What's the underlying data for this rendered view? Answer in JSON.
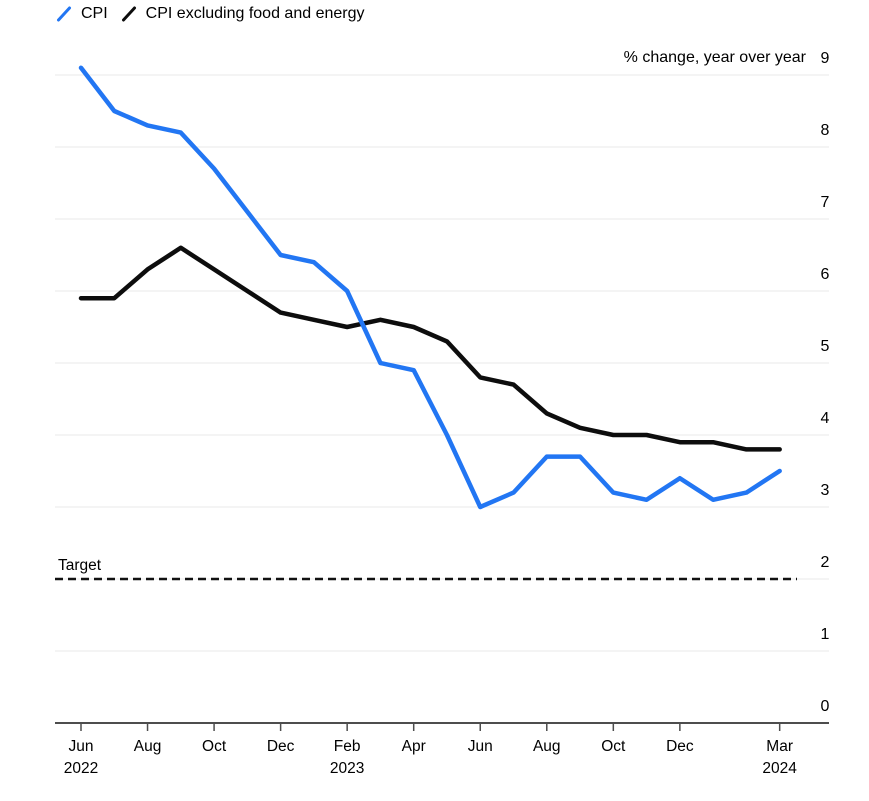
{
  "legend": {
    "items": [
      {
        "label": "CPI",
        "color": "#2276f3"
      },
      {
        "label": "CPI excluding food and energy",
        "color": "#0d0d0d"
      }
    ]
  },
  "colors": {
    "cpi_blue": "#2276f3",
    "core_black": "#0d0d0d",
    "grid": "#e9e9e9",
    "axis": "#4d4d4d",
    "target_dash": "#111111"
  },
  "chart_data": {
    "type": "line",
    "title": "",
    "unit_label": "% change, year over year",
    "x": [
      "Jun 2022",
      "Jul 2022",
      "Aug 2022",
      "Sep 2022",
      "Oct 2022",
      "Nov 2022",
      "Dec 2022",
      "Jan 2023",
      "Feb 2023",
      "Mar 2023",
      "Apr 2023",
      "May 2023",
      "Jun 2023",
      "Jul 2023",
      "Aug 2023",
      "Sep 2023",
      "Oct 2023",
      "Nov 2023",
      "Dec 2023",
      "Jan 2024",
      "Feb 2024",
      "Mar 2024"
    ],
    "series": [
      {
        "name": "CPI",
        "color": "#2276f3",
        "values": [
          9.1,
          8.5,
          8.3,
          8.2,
          7.7,
          7.1,
          6.5,
          6.4,
          6.0,
          5.0,
          4.9,
          4.0,
          3.0,
          3.2,
          3.7,
          3.7,
          3.2,
          3.1,
          3.4,
          3.1,
          3.2,
          3.5
        ]
      },
      {
        "name": "CPI excluding food and energy",
        "color": "#0d0d0d",
        "values": [
          5.9,
          5.9,
          6.3,
          6.6,
          6.3,
          6.0,
          5.7,
          5.6,
          5.5,
          5.6,
          5.5,
          5.3,
          4.8,
          4.7,
          4.3,
          4.1,
          4.0,
          4.0,
          3.9,
          3.9,
          3.8,
          3.8
        ]
      }
    ],
    "ylim": [
      0,
      9
    ],
    "yticks": [
      0,
      1,
      2,
      3,
      4,
      5,
      6,
      7,
      8,
      9
    ],
    "xticks": [
      {
        "index": 0,
        "month": "Jun",
        "year": "2022"
      },
      {
        "index": 2,
        "month": "Aug",
        "year": ""
      },
      {
        "index": 4,
        "month": "Oct",
        "year": ""
      },
      {
        "index": 6,
        "month": "Dec",
        "year": ""
      },
      {
        "index": 8,
        "month": "Feb",
        "year": "2023"
      },
      {
        "index": 10,
        "month": "Apr",
        "year": ""
      },
      {
        "index": 12,
        "month": "Jun",
        "year": ""
      },
      {
        "index": 14,
        "month": "Aug",
        "year": ""
      },
      {
        "index": 16,
        "month": "Oct",
        "year": ""
      },
      {
        "index": 18,
        "month": "Dec",
        "year": ""
      },
      {
        "index": 21,
        "month": "Mar",
        "year": "2024"
      }
    ],
    "target_line": {
      "label": "Target",
      "value": 2,
      "style": "dashed"
    },
    "grid": "horizontal",
    "legend_position": "top-left"
  }
}
